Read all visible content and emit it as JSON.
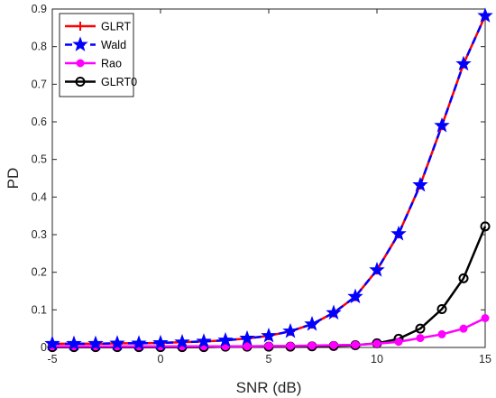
{
  "chart_data": {
    "type": "line",
    "xlabel": "SNR (dB)",
    "ylabel": "PD",
    "xlim": [
      -5,
      15
    ],
    "ylim": [
      0,
      0.9
    ],
    "xticks": [
      -5,
      0,
      5,
      10,
      15
    ],
    "yticks": [
      0,
      0.1,
      0.2,
      0.3,
      0.4,
      0.5,
      0.6,
      0.7,
      0.8,
      0.9
    ],
    "grid": false,
    "legend_position": "top-left",
    "x": [
      -5,
      -4,
      -3,
      -2,
      -1,
      0,
      1,
      2,
      3,
      4,
      5,
      6,
      7,
      8,
      9,
      10,
      11,
      12,
      13,
      14,
      15
    ],
    "series": [
      {
        "name": "GLRT",
        "color": "#ff0000",
        "line": "solid",
        "marker": "plus",
        "values": [
          0.01,
          0.01,
          0.01,
          0.011,
          0.011,
          0.012,
          0.014,
          0.016,
          0.019,
          0.024,
          0.031,
          0.043,
          0.062,
          0.092,
          0.135,
          0.206,
          0.302,
          0.432,
          0.59,
          0.754,
          0.882
        ]
      },
      {
        "name": "Wald",
        "color": "#0000ff",
        "line": "dashed",
        "marker": "star",
        "values": [
          0.01,
          0.01,
          0.01,
          0.011,
          0.011,
          0.012,
          0.014,
          0.016,
          0.019,
          0.024,
          0.031,
          0.043,
          0.062,
          0.092,
          0.135,
          0.206,
          0.302,
          0.432,
          0.59,
          0.754,
          0.882
        ]
      },
      {
        "name": "Rao",
        "color": "#ff00ff",
        "line": "solid",
        "marker": "filled-circle",
        "values": [
          0.003,
          0.003,
          0.003,
          0.003,
          0.003,
          0.003,
          0.003,
          0.003,
          0.003,
          0.003,
          0.004,
          0.004,
          0.005,
          0.006,
          0.007,
          0.01,
          0.015,
          0.025,
          0.035,
          0.05,
          0.078
        ]
      },
      {
        "name": "GLRT0",
        "color": "#000000",
        "line": "solid",
        "marker": "open-circle",
        "values": [
          0.001,
          0.001,
          0.001,
          0.001,
          0.001,
          0.001,
          0.001,
          0.001,
          0.002,
          0.002,
          0.002,
          0.002,
          0.003,
          0.004,
          0.006,
          0.011,
          0.023,
          0.05,
          0.102,
          0.184,
          0.322
        ]
      }
    ]
  }
}
